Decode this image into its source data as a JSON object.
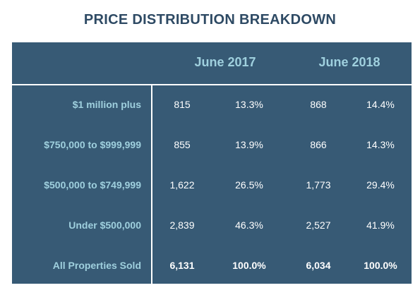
{
  "title": "PRICE DISTRIBUTION BREAKDOWN",
  "colors": {
    "title": "#2e4a64",
    "table_background": "#375a75",
    "header_text": "#9fd0de",
    "cell_text": "#ffffff",
    "divider": "#ffffff"
  },
  "chart_data": {
    "type": "table",
    "title": "PRICE DISTRIBUTION BREAKDOWN",
    "periods": [
      "June 2017",
      "June 2018"
    ],
    "rows": [
      {
        "label": "$1 million plus",
        "values": [
          "815",
          "13.3%",
          "868",
          "14.4%"
        ],
        "bold": false
      },
      {
        "label": "$750,000 to $999,999",
        "values": [
          "855",
          "13.9%",
          "866",
          "14.3%"
        ],
        "bold": false
      },
      {
        "label": "$500,000 to $749,999",
        "values": [
          "1,622",
          "26.5%",
          "1,773",
          "29.4%"
        ],
        "bold": false
      },
      {
        "label": "Under $500,000",
        "values": [
          "2,839",
          "46.3%",
          "2,527",
          "41.9%"
        ],
        "bold": false
      },
      {
        "label": "All Properties Sold",
        "values": [
          "6,131",
          "100.0%",
          "6,034",
          "100.0%"
        ],
        "bold": true
      }
    ]
  }
}
